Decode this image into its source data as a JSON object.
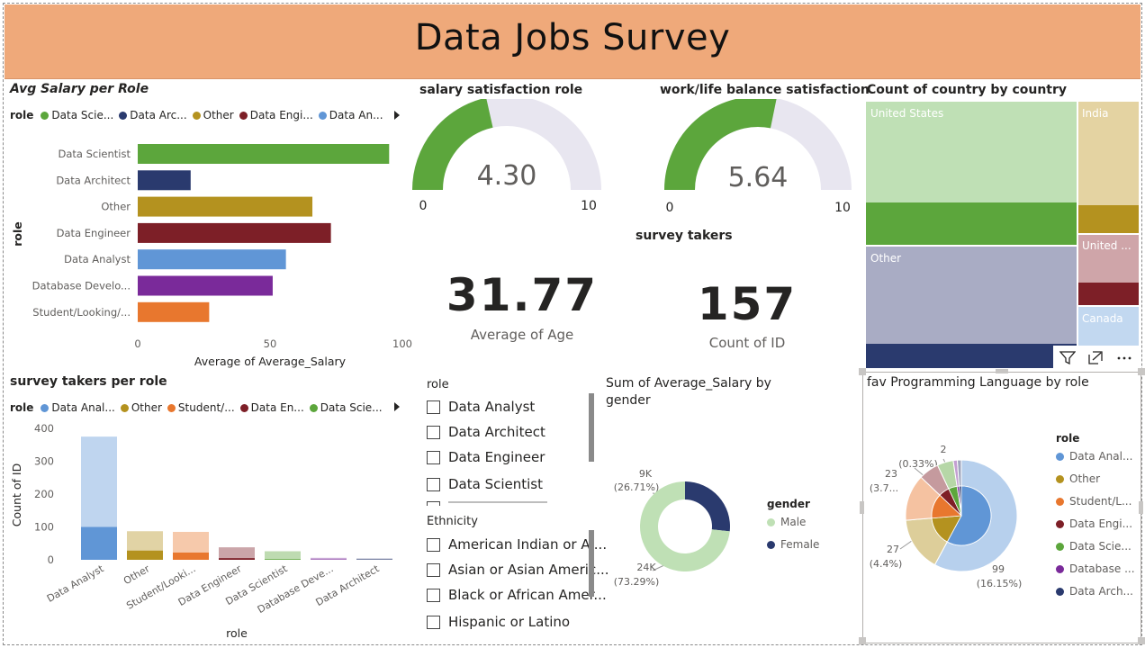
{
  "header": {
    "title": "Data Jobs Survey"
  },
  "colors": {
    "banner": "#efa97a",
    "data_scientist": "#5ca63c",
    "data_architect": "#2a3a6e",
    "other": "#b4921f",
    "data_engineer": "#7d1f27",
    "data_analyst": "#6096d6",
    "database_developer": "#7a2a9a",
    "student": "#e8772e"
  },
  "avg_salary": {
    "title": "Avg Salary per Role",
    "legend_key": "role",
    "legend": [
      {
        "label": "Data Scie...",
        "color": "#5ca63c"
      },
      {
        "label": "Data Arc...",
        "color": "#2a3a6e"
      },
      {
        "label": "Other",
        "color": "#b4921f"
      },
      {
        "label": "Data Engi...",
        "color": "#7d1f27"
      },
      {
        "label": "Data An...",
        "color": "#6096d6"
      }
    ],
    "y_axis_label": "role",
    "x_axis_label": "Average of Average_Salary",
    "ticks": [
      "0",
      "50",
      "100"
    ]
  },
  "salary_gauge": {
    "title": "salary satisfaction role",
    "value": "4.30",
    "min": "0",
    "max": "10"
  },
  "wlb_gauge": {
    "title": "work/life balance satisfaction",
    "value": "5.64",
    "min": "0",
    "max": "10"
  },
  "avg_age_card": {
    "value": "31.77",
    "label": "Average of Age"
  },
  "survey_takers_card": {
    "title": "survey takers",
    "value": "157",
    "label": "Count of ID"
  },
  "country_treemap": {
    "title": "Count of country by country",
    "labels": {
      "us": "United States",
      "india": "India",
      "other": "Other",
      "uk": "United ...",
      "canada": "Canada"
    }
  },
  "per_role": {
    "title": "survey takers per role",
    "legend_key": "role",
    "legend": [
      {
        "label": "Data Anal...",
        "color": "#6096d6"
      },
      {
        "label": "Other",
        "color": "#b4921f"
      },
      {
        "label": "Student/...",
        "color": "#e8772e"
      },
      {
        "label": "Data En...",
        "color": "#7d1f27"
      },
      {
        "label": "Data Scie...",
        "color": "#5ca63c"
      }
    ],
    "y_axis_label": "Count of ID",
    "x_axis_label": "role",
    "y_ticks": [
      "400",
      "300",
      "200",
      "100",
      "0"
    ]
  },
  "role_slicer": {
    "title": "role",
    "items": [
      "Data Analyst",
      "Data Architect",
      "Data Engineer",
      "Data Scientist"
    ]
  },
  "ethnicity_slicer": {
    "title": "Ethnicity",
    "items": [
      "American Indian or Al...",
      "Asian or Asian Americ...",
      "Black or African Amer...",
      "Hispanic or Latino"
    ]
  },
  "gender_donut": {
    "title_line1": "Sum of Average_Salary by",
    "title_line2": "gender",
    "legend_title": "gender",
    "legend": [
      {
        "label": "Male",
        "color": "#bfe0b5"
      },
      {
        "label": "Female",
        "color": "#2a3a6e"
      }
    ],
    "label_female_value": "9K",
    "label_female_pct": "(26.71%)",
    "label_male_value": "24K",
    "label_male_pct": "(73.29%)"
  },
  "prog_lang": {
    "title": "fav Programming Language by role",
    "legend_title": "role",
    "legend": [
      {
        "label": "Data Anal...",
        "color": "#6096d6"
      },
      {
        "label": "Other",
        "color": "#b4921f"
      },
      {
        "label": "Student/L...",
        "color": "#e8772e"
      },
      {
        "label": "Data Engi...",
        "color": "#7d1f27"
      },
      {
        "label": "Data Scie...",
        "color": "#5ca63c"
      },
      {
        "label": "Database ...",
        "color": "#7a2a9a"
      },
      {
        "label": "Data Arch...",
        "color": "#2a3a6e"
      }
    ],
    "labels": {
      "v2": "2",
      "p2": "(0.33%)",
      "v23": "23",
      "p23": "(3.7...",
      "v27": "27",
      "p27": "(4.4%)",
      "v99": "99",
      "p99": "(16.15%)"
    }
  },
  "chart_data": [
    {
      "type": "bar",
      "orientation": "horizontal",
      "title": "Avg Salary per Role",
      "categories": [
        "Data Scientist",
        "Data Architect",
        "Other",
        "Data Engineer",
        "Data Analyst",
        "Database Develo...",
        "Student/Looking/..."
      ],
      "values": [
        95,
        20,
        66,
        73,
        56,
        51,
        27
      ],
      "colors": [
        "#5ca63c",
        "#2a3a6e",
        "#b4921f",
        "#7d1f27",
        "#6096d6",
        "#7a2a9a",
        "#e8772e"
      ],
      "xlabel": "Average of Average_Salary",
      "ylabel": "role",
      "xlim": [
        0,
        100
      ]
    },
    {
      "type": "bar",
      "title": "survey takers per role",
      "categories": [
        "Data Analyst",
        "Other",
        "Student/Looki...",
        "Data Engineer",
        "Data Scientist",
        "Database Deve...",
        "Data Architect"
      ],
      "series": [
        {
          "name": "highlighted",
          "values": [
            100,
            28,
            22,
            5,
            2,
            1,
            1
          ]
        },
        {
          "name": "total",
          "values": [
            375,
            87,
            85,
            38,
            26,
            6,
            4
          ]
        }
      ],
      "colors": [
        "#6096d6",
        "#b4921f",
        "#e8772e",
        "#7d1f27",
        "#5ca63c",
        "#7a2a9a",
        "#2a3a6e"
      ],
      "xlabel": "role",
      "ylabel": "Count of ID",
      "ylim": [
        0,
        400
      ]
    },
    {
      "type": "pie",
      "title": "Sum of Average_Salary by gender",
      "categories": [
        "Female",
        "Male"
      ],
      "values": [
        26.71,
        73.29
      ],
      "colors": [
        "#2a3a6e",
        "#bfe0b5"
      ]
    },
    {
      "type": "pie",
      "title": "fav Programming Language by role",
      "categories": [
        "Data Analyst",
        "Other",
        "Student/Looking",
        "Data Engineer",
        "Data Scientist",
        "Database Developer",
        "Data Architect"
      ],
      "values": [
        99,
        27,
        23,
        10,
        8,
        2,
        2
      ],
      "colors": [
        "#6096d6",
        "#b4921f",
        "#e8772e",
        "#7d1f27",
        "#5ca63c",
        "#7a2a9a",
        "#2a3a6e"
      ]
    }
  ]
}
